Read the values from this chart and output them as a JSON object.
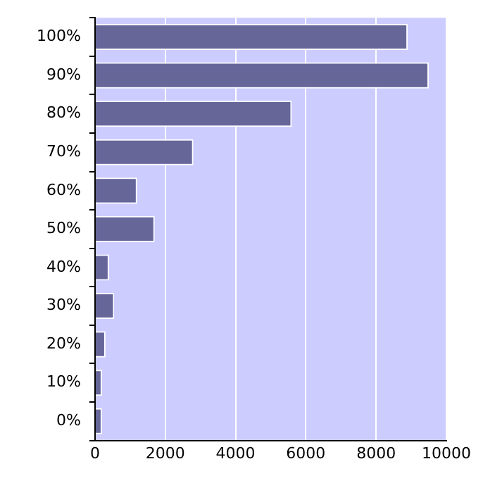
{
  "chart_data": {
    "type": "bar",
    "orientation": "horizontal",
    "categories": [
      "100%",
      "90%",
      "80%",
      "70%",
      "60%",
      "50%",
      "40%",
      "30%",
      "20%",
      "10%",
      "0%"
    ],
    "values": [
      8900,
      9500,
      5600,
      2800,
      1200,
      1700,
      400,
      550,
      300,
      200,
      200
    ],
    "color": "#666699",
    "xlim": [
      0,
      10000
    ],
    "xticks": [
      0,
      2000,
      4000,
      6000,
      8000,
      10000
    ],
    "grid": "x"
  }
}
